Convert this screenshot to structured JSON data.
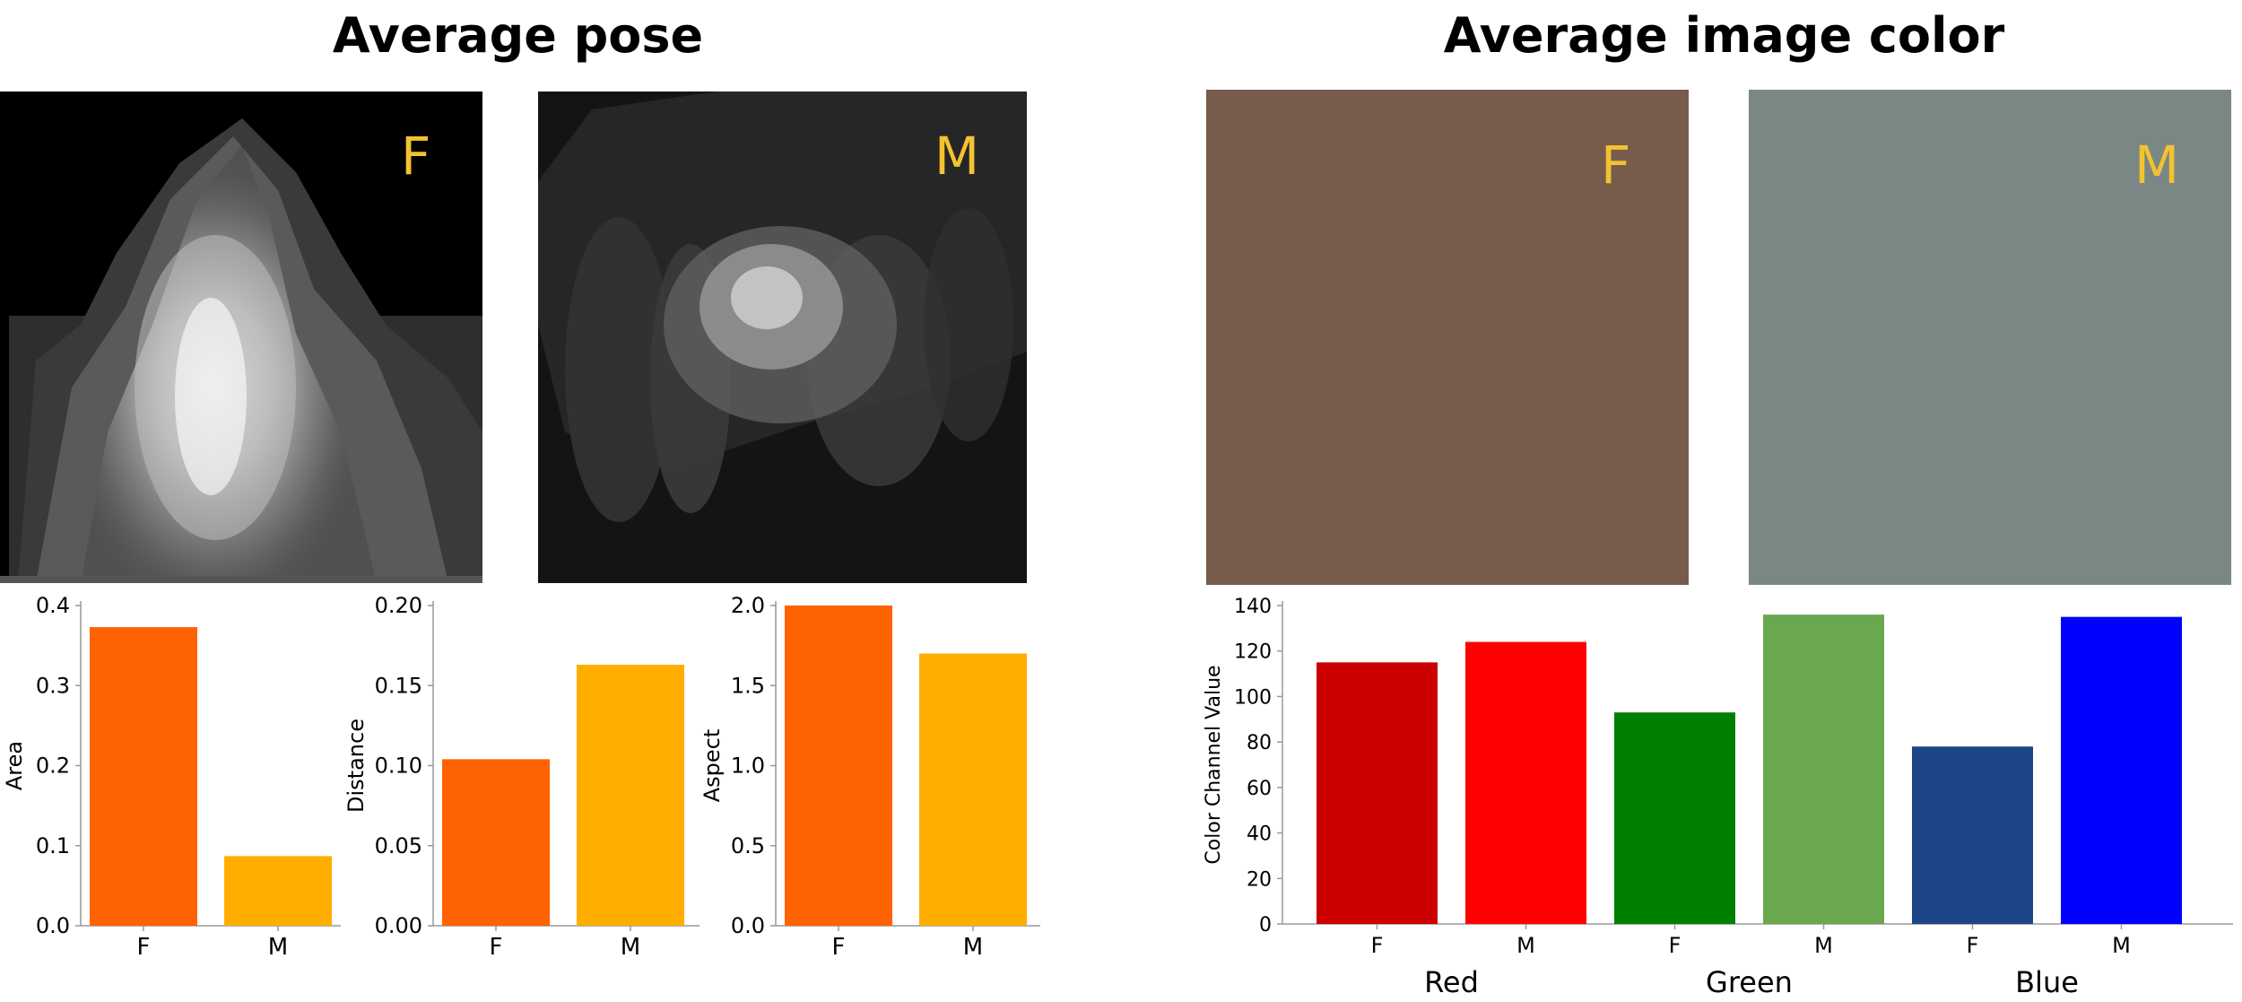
{
  "titles": {
    "pose": "Average pose",
    "color": "Average image color"
  },
  "pose_images": [
    {
      "label": "F",
      "background": "#000000"
    },
    {
      "label": "M",
      "background": "#111111"
    }
  ],
  "color_images": [
    {
      "label": "F",
      "color": "#775c4c"
    },
    {
      "label": "M",
      "color": "#7b8784"
    }
  ],
  "label_color": "#f2c230",
  "chart_data": [
    {
      "type": "bar",
      "ylabel": "Area",
      "categories": [
        "F",
        "M"
      ],
      "values": [
        0.373,
        0.087
      ],
      "colors": [
        "#ff6200",
        "#ffae00"
      ],
      "ylim": [
        0,
        0.4
      ],
      "ytick_labels": [
        "0.0",
        "0.1",
        "0.2",
        "0.3",
        "0.4"
      ],
      "grid": false
    },
    {
      "type": "bar",
      "ylabel": "Distance",
      "categories": [
        "F",
        "M"
      ],
      "values": [
        0.104,
        0.163
      ],
      "colors": [
        "#ff6200",
        "#ffae00"
      ],
      "ylim": [
        0,
        0.2
      ],
      "ytick_labels": [
        "0.00",
        "0.05",
        "0.10",
        "0.15",
        "0.20"
      ],
      "grid": false
    },
    {
      "type": "bar",
      "ylabel": "Aspect",
      "categories": [
        "F",
        "M"
      ],
      "values": [
        2.0,
        1.7
      ],
      "colors": [
        "#ff6200",
        "#ffae00"
      ],
      "ylim": [
        0,
        2.0
      ],
      "ytick_labels": [
        "0.0",
        "0.5",
        "1.0",
        "1.5",
        "2.0"
      ],
      "grid": false
    },
    {
      "type": "bar",
      "ylabel": "Color Channel Value",
      "categories": [
        "F",
        "M",
        "F",
        "M",
        "F",
        "M"
      ],
      "groups": [
        "Red",
        "Green",
        "Blue"
      ],
      "values": [
        115,
        124,
        93,
        136,
        78,
        135
      ],
      "colors": [
        "#cc0000",
        "#ff0000",
        "#008000",
        "#6aa84f",
        "#1c4587",
        "#0000ff"
      ],
      "ylim": [
        0,
        140
      ],
      "ytick_labels": [
        "0",
        "20",
        "40",
        "60",
        "80",
        "100",
        "120",
        "140"
      ],
      "grid": false
    }
  ]
}
